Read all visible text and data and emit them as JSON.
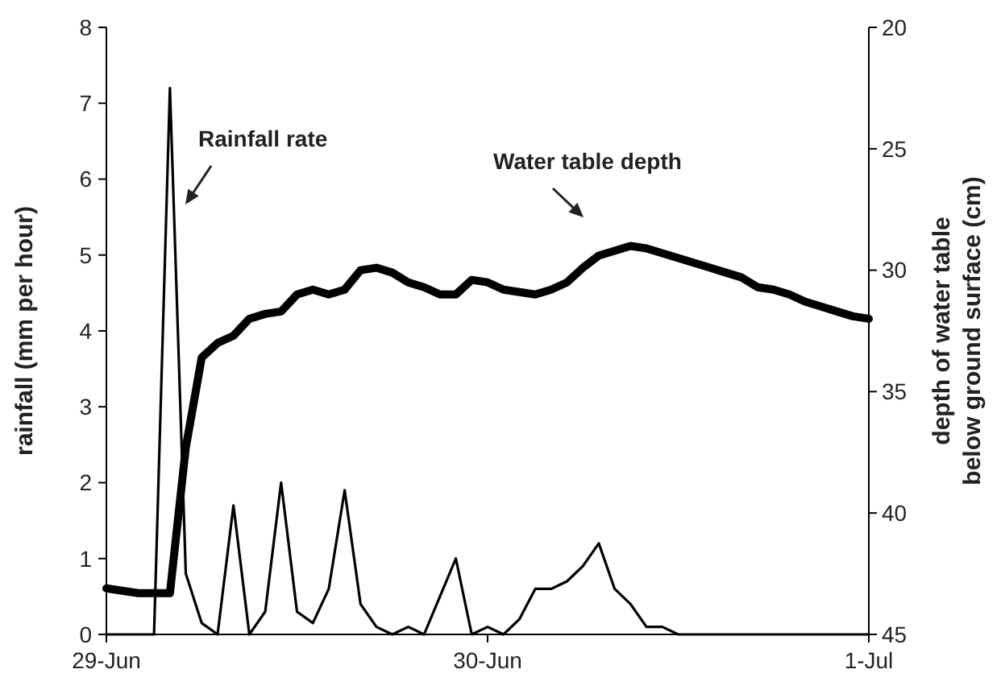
{
  "chart_data": {
    "type": "line",
    "ylabel": "rainfall (mm per hour)",
    "y2label": "depth of water table\nbelow ground surface (cm)",
    "categories": [
      "29-Jun",
      null,
      null,
      null,
      null,
      null,
      null,
      null,
      null,
      null,
      null,
      null,
      null,
      null,
      null,
      null,
      null,
      null,
      null,
      null,
      null,
      null,
      null,
      null,
      "30-Jun",
      null,
      null,
      null,
      null,
      null,
      null,
      null,
      null,
      null,
      null,
      null,
      null,
      null,
      null,
      null,
      null,
      null,
      null,
      null,
      null,
      null,
      null,
      null,
      "1-Jul"
    ],
    "ylim": [
      0,
      8
    ],
    "yticks": [
      0,
      1,
      2,
      3,
      4,
      5,
      6,
      7,
      8
    ],
    "y2lim": [
      45,
      20
    ],
    "y2ticks": [
      45,
      40,
      35,
      30,
      25,
      20
    ],
    "series": [
      {
        "color": "#000000",
        "values": [
          0,
          0,
          0,
          0,
          7.2,
          0.8,
          0.15,
          0,
          1.7,
          0,
          0.3,
          2.0,
          0.3,
          0.15,
          0.6,
          1.9,
          0.4,
          0.1,
          0,
          0.1,
          0,
          0.5,
          1.0,
          0,
          0.1,
          0,
          0.2,
          0.6,
          0.6,
          0.7,
          0.9,
          1.2,
          0.6,
          0.4,
          0.1,
          0.1,
          0,
          0,
          0,
          0,
          0,
          0,
          0,
          0,
          0,
          0,
          0,
          0,
          0
        ]
      },
      {
        "color": "#000000",
        "axis": "y2",
        "values": [
          43.1,
          43.2,
          43.3,
          43.3,
          43.3,
          37.3,
          33.6,
          33.0,
          32.7,
          32.0,
          31.8,
          31.7,
          31.0,
          30.8,
          31.0,
          30.8,
          30.0,
          29.9,
          30.1,
          30.5,
          30.7,
          31.0,
          31.0,
          30.4,
          30.5,
          30.8,
          30.9,
          31.0,
          30.8,
          30.5,
          29.9,
          29.4,
          29.2,
          29.0,
          29.1,
          29.3,
          29.5,
          29.7,
          29.9,
          30.1,
          30.3,
          30.7,
          30.8,
          31.0,
          31.3,
          31.5,
          31.7,
          31.9,
          32.0
        ]
      }
    ],
    "annotations": [
      "Rainfall rate",
      "Water table depth"
    ],
    "grid": false
  }
}
